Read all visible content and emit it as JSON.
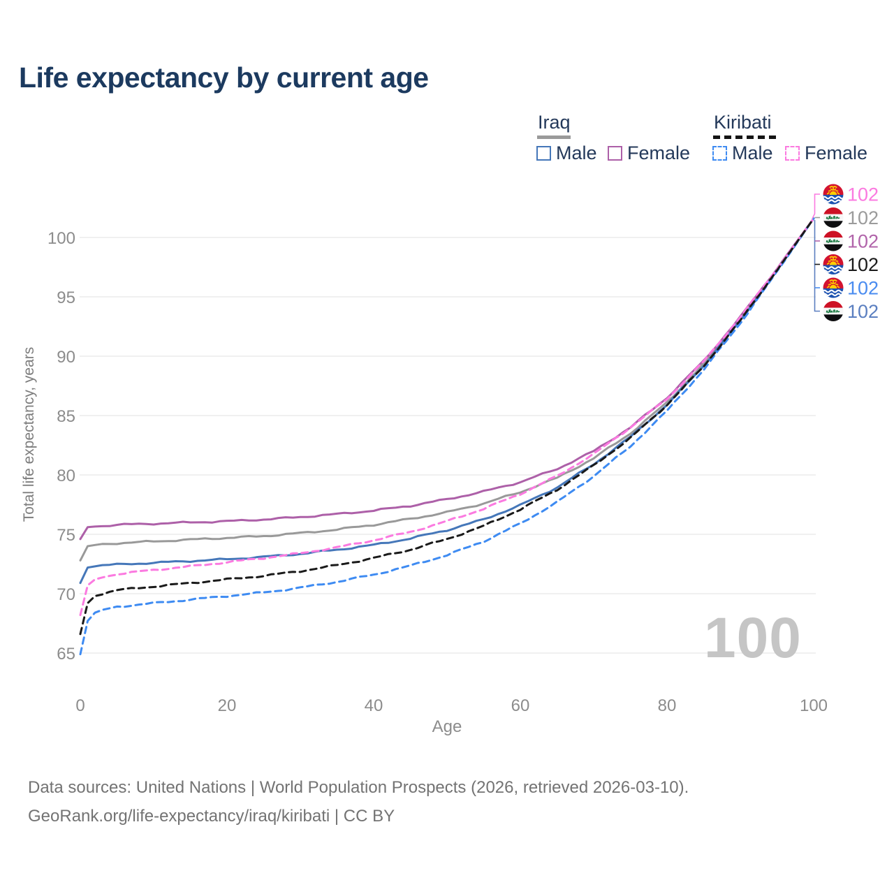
{
  "title": "Life expectancy by current age",
  "watermark_age": "100",
  "footer": {
    "line1": "Data sources: United Nations | World Population Prospects (2026, retrieved 2026-03-10).",
    "line2": "GeoRank.org/life-expectancy/iraq/kiribati | CC BY"
  },
  "legend": {
    "groups": [
      {
        "label": "Iraq",
        "line_style": "solid",
        "underline_color": "#9a9a9a",
        "items": [
          {
            "label": "Male",
            "color": "#4577b9",
            "dashed": false
          },
          {
            "label": "Female",
            "color": "#ad60a8",
            "dashed": false
          }
        ]
      },
      {
        "label": "Kiribati",
        "line_style": "dashed",
        "underline_color": "#141414",
        "items": [
          {
            "label": "Male",
            "color": "#3e8bf2",
            "dashed": true
          },
          {
            "label": "Female",
            "color": "#fb7ae0",
            "dashed": true
          }
        ]
      }
    ]
  },
  "chart_data": {
    "type": "line",
    "title": "Life expectancy by current age",
    "xlabel": "Age",
    "ylabel": "Total life expectancy, years",
    "xlim": [
      0,
      100
    ],
    "ylim": [
      63,
      103
    ],
    "xticks": [
      0,
      20,
      40,
      60,
      80,
      100
    ],
    "yticks": [
      65,
      70,
      75,
      80,
      85,
      90,
      95,
      100
    ],
    "grid": "horizontal",
    "legend_position": "top-right",
    "ages": [
      0,
      1,
      2,
      3,
      5,
      10,
      15,
      20,
      25,
      30,
      35,
      40,
      45,
      50,
      55,
      60,
      65,
      70,
      75,
      80,
      85,
      90,
      95,
      100
    ],
    "series": [
      {
        "name": "Iraq",
        "country": "Iraq",
        "sex": "both",
        "color": "#999999",
        "dashed": false,
        "values": [
          72.8,
          74.0,
          74.1,
          74.15,
          74.25,
          74.4,
          74.55,
          74.7,
          74.85,
          75.1,
          75.4,
          75.8,
          76.3,
          76.85,
          77.6,
          78.55,
          79.75,
          81.4,
          83.5,
          86.1,
          89.35,
          93.15,
          97.3,
          101.6
        ]
      },
      {
        "name": "Iraq Female",
        "country": "Iraq",
        "sex": "female",
        "color": "#ad60a8",
        "dashed": false,
        "values": [
          74.6,
          75.6,
          75.65,
          75.7,
          75.8,
          75.9,
          76.0,
          76.1,
          76.25,
          76.45,
          76.7,
          77.0,
          77.4,
          77.95,
          78.6,
          79.4,
          80.5,
          82.0,
          84.0,
          86.5,
          89.6,
          93.3,
          97.4,
          101.6
        ]
      },
      {
        "name": "Iraq Male",
        "country": "Iraq",
        "sex": "male",
        "color": "#4577b9",
        "dashed": false,
        "values": [
          70.9,
          72.2,
          72.3,
          72.4,
          72.45,
          72.6,
          72.75,
          72.9,
          73.1,
          73.35,
          73.7,
          74.1,
          74.65,
          75.35,
          76.25,
          77.45,
          78.95,
          80.9,
          83.2,
          85.9,
          89.2,
          93.0,
          97.2,
          101.6
        ]
      },
      {
        "name": "Kiribati Male",
        "country": "Kiribati",
        "sex": "male",
        "color": "#3e8bf2",
        "dashed": true,
        "values": [
          64.9,
          67.7,
          68.4,
          68.6,
          68.9,
          69.2,
          69.5,
          69.8,
          70.1,
          70.5,
          71.0,
          71.6,
          72.35,
          73.25,
          74.4,
          75.9,
          77.7,
          79.9,
          82.4,
          85.4,
          88.85,
          92.8,
          97.1,
          101.6
        ]
      },
      {
        "name": "Kiribati Female",
        "country": "Kiribati",
        "sex": "female",
        "color": "#fb7ae0",
        "dashed": true,
        "values": [
          68.2,
          70.7,
          71.2,
          71.4,
          71.65,
          72.0,
          72.3,
          72.65,
          73.0,
          73.4,
          73.9,
          74.5,
          75.2,
          76.1,
          77.15,
          78.4,
          79.9,
          81.75,
          84.0,
          86.4,
          89.55,
          93.3,
          97.35,
          101.6
        ]
      },
      {
        "name": "Kiribati",
        "country": "Kiribati",
        "sex": "both",
        "color": "#1a1a1a",
        "dashed": true,
        "values": [
          66.6,
          69.2,
          69.8,
          70.0,
          70.3,
          70.6,
          70.9,
          71.2,
          71.5,
          71.9,
          72.4,
          73.0,
          73.7,
          74.6,
          75.7,
          77.1,
          78.75,
          80.8,
          83.1,
          85.9,
          89.15,
          93.0,
          97.25,
          101.6
        ]
      }
    ],
    "end_labels": [
      {
        "flag": "kiribati",
        "series": "Kiribati Female",
        "value": "102",
        "color": "#fb7ae0"
      },
      {
        "flag": "iraq",
        "series": "Iraq",
        "value": "102",
        "color": "#9b9b9b"
      },
      {
        "flag": "iraq",
        "series": "Iraq Female",
        "value": "102",
        "color": "#b164aa"
      },
      {
        "flag": "kiribati",
        "series": "Kiribati",
        "value": "102",
        "color": "#1a1a1a"
      },
      {
        "flag": "kiribati",
        "series": "Kiribati Male",
        "value": "102",
        "color": "#4a8cf0"
      },
      {
        "flag": "iraq",
        "series": "Iraq Male",
        "value": "102",
        "color": "#5b7fc0"
      }
    ]
  }
}
